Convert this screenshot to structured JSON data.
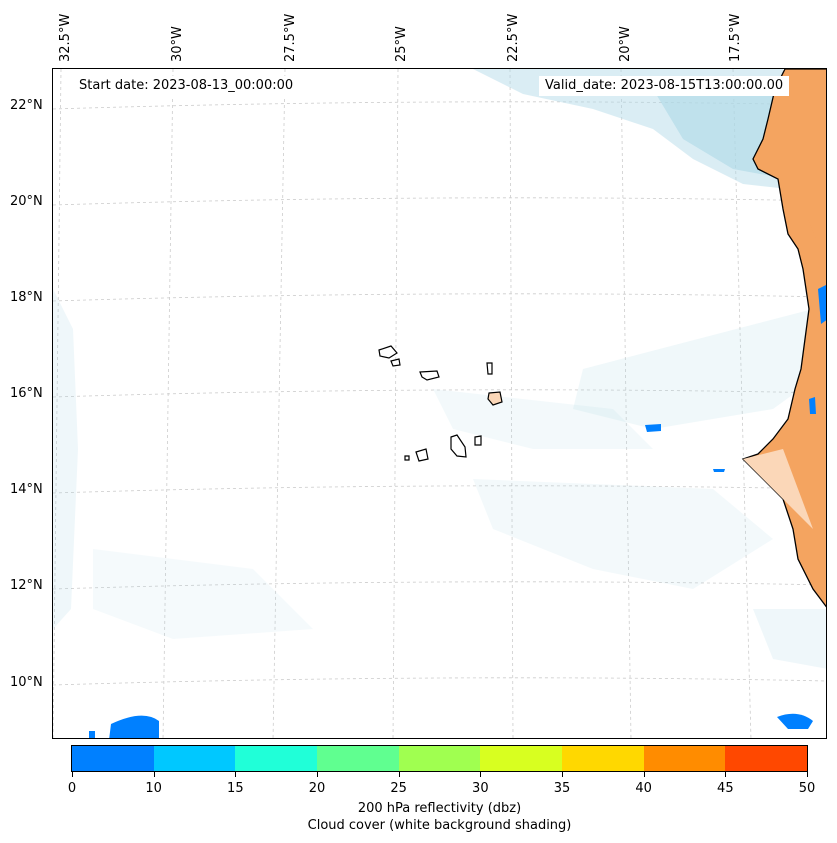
{
  "map": {
    "longitude_labels": [
      "32.5°W",
      "30°W",
      "27.5°W",
      "25°W",
      "22.5°W",
      "20°W",
      "17.5°W"
    ],
    "latitude_labels": [
      "22°N",
      "20°N",
      "18°N",
      "16°N",
      "14°N",
      "12°N",
      "10°N"
    ],
    "start_date": "Start date: 2023-08-13_00:00:00",
    "valid_date": "Valid_date: 2023-08-15T13:00:00.00",
    "colors": {
      "land": "#f4a460",
      "cloud": "#add8e6",
      "coast": "#000000",
      "grid": "#cccccc"
    }
  },
  "colorbar": {
    "ticks": [
      "0",
      "10",
      "15",
      "20",
      "25",
      "30",
      "35",
      "40",
      "45",
      "50"
    ],
    "colors": [
      "#0080ff",
      "#00c8ff",
      "#20ffd8",
      "#60ff90",
      "#a0ff50",
      "#d8ff20",
      "#ffd800",
      "#ff8c00",
      "#ff4800"
    ],
    "label_line1": "200 hPa reflectivity (dbz)",
    "label_line2": "Cloud cover (white background shading)"
  }
}
